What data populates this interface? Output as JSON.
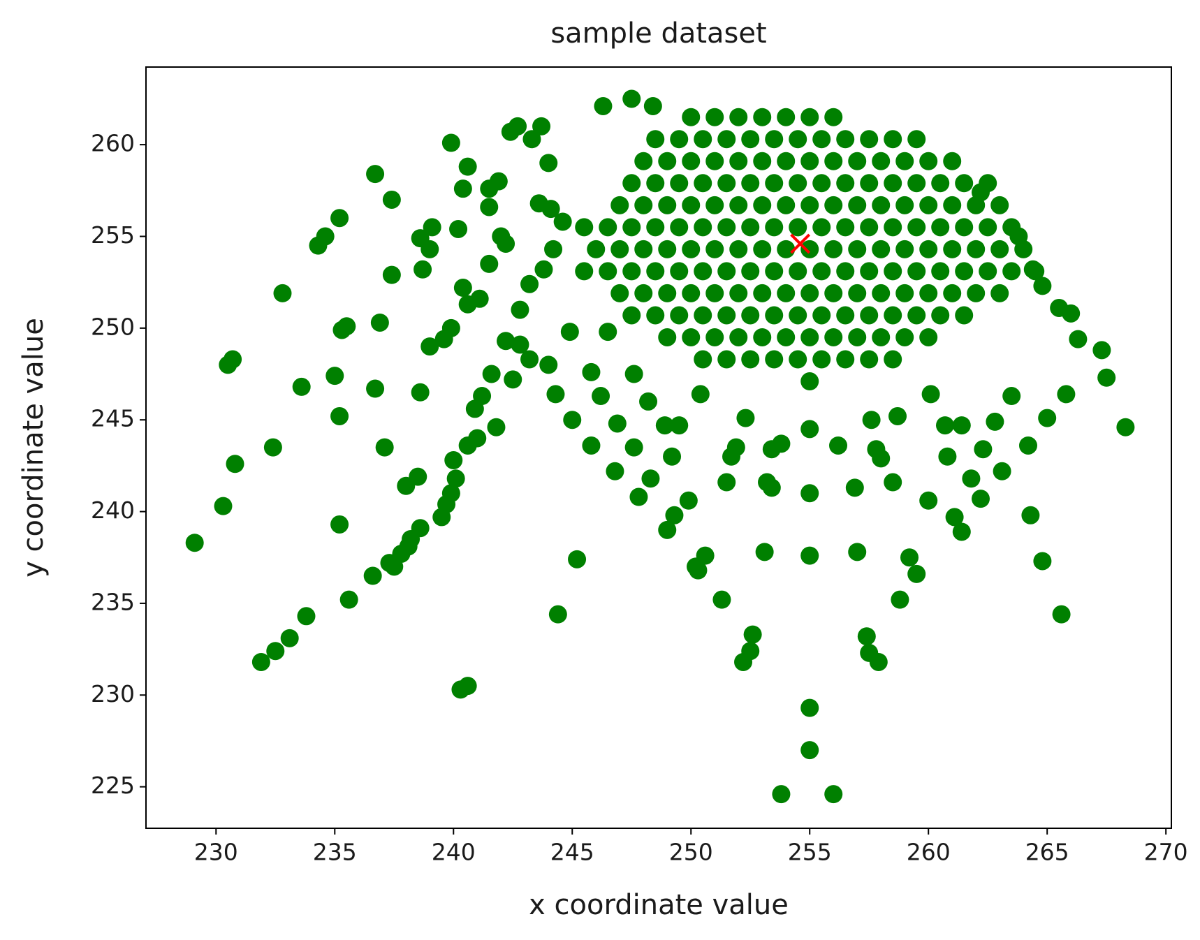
{
  "chart_data": {
    "type": "scatter",
    "title": "sample dataset",
    "x_label": "x coordinate value",
    "y_label": "y coordinate value",
    "xlim": [
      227.05,
      270.23
    ],
    "ylim": [
      222.74,
      264.23
    ],
    "xticks": [
      230,
      235,
      240,
      245,
      250,
      255,
      260,
      265,
      270
    ],
    "yticks": [
      225,
      230,
      235,
      240,
      245,
      250,
      255,
      260
    ],
    "grid": false,
    "series": [
      {
        "color": "#008000",
        "marker": "o",
        "x": [
          229.1,
          230.3,
          230.8,
          230.5,
          230.7,
          231.9,
          232.5,
          233.1,
          233.8,
          232.4,
          233.6,
          232.8,
          234.3,
          234.6,
          235.2,
          235,
          235.2,
          235.2,
          235.6,
          235.3,
          235.5,
          236.7,
          237.4,
          236.7,
          236.6,
          236.9,
          237.4,
          237.1,
          237.3,
          237.5,
          237.8,
          238.1,
          238.2,
          238.6,
          238,
          238.5,
          238.6,
          238.7,
          238.6,
          239,
          239.1,
          239,
          239.6,
          239.9,
          239.5,
          239.7,
          239.9,
          240.1,
          240,
          240.3,
          240.6,
          239.9,
          240.4,
          240.6,
          240.2,
          240.4,
          240.6,
          241.1,
          240.6,
          241,
          241.8,
          240.9,
          241.2,
          241.6,
          241.5,
          241.5,
          241.5,
          241.9,
          242,
          242.2,
          242.4,
          242.7,
          243.3,
          243.7,
          244,
          243.6,
          244.1,
          244.6,
          242.8,
          243.2,
          243.8,
          244.2,
          242.2,
          242.8,
          242.5,
          243.2,
          244,
          244.3,
          244.9,
          244.4,
          245,
          245.2,
          245.8,
          246.2,
          245.8,
          246.5,
          246.3,
          246.9,
          246.8,
          247.6,
          247.8,
          247.6,
          247.5,
          248.4,
          248.3,
          248.2,
          248.9,
          249,
          249.3,
          249.2,
          249.5,
          249.9,
          250.2,
          250.3,
          250.6,
          250.4,
          251.3,
          251.5,
          251.7,
          251.9,
          252.3,
          252.2,
          252.5,
          252.6,
          253.1,
          253.2,
          253.4,
          253.4,
          253.8,
          253.8,
          255,
          255,
          255,
          255,
          255,
          255,
          256,
          256.2,
          256.9,
          257,
          257.4,
          257.5,
          257.9,
          257.6,
          257.8,
          258,
          258.5,
          258.8,
          258.7,
          259.2,
          259.5,
          260,
          260.1,
          260.7,
          260.8,
          261.1,
          261.4,
          261.4,
          261.8,
          262.2,
          262.3,
          263.1,
          262.8,
          263.5,
          264.2,
          264.3,
          264.8,
          265.6,
          265,
          265.8,
          266.3,
          267.3,
          267.5,
          268.3,
          266,
          265.5,
          264.8,
          264.4,
          263.8,
          262.2
        ],
        "values": [
          238.3,
          240.3,
          242.6,
          248,
          248.3,
          231.8,
          232.4,
          233.1,
          234.3,
          243.5,
          246.8,
          251.9,
          254.5,
          255,
          256,
          247.4,
          245.2,
          239.3,
          235.2,
          249.9,
          250.1,
          258.4,
          257,
          246.7,
          236.5,
          250.3,
          252.9,
          243.5,
          237.2,
          237,
          237.7,
          238.1,
          238.5,
          239.1,
          241.4,
          241.9,
          246.5,
          253.2,
          254.9,
          254.3,
          255.5,
          249,
          249.4,
          250,
          239.7,
          240.4,
          241,
          241.8,
          242.8,
          230.3,
          230.5,
          260.1,
          257.6,
          258.8,
          255.4,
          252.2,
          251.3,
          251.6,
          243.6,
          244,
          244.6,
          245.6,
          246.3,
          247.5,
          253.5,
          256.6,
          257.6,
          258,
          255,
          254.6,
          260.7,
          261,
          260.3,
          261,
          259,
          256.8,
          256.5,
          255.8,
          251,
          252.4,
          253.2,
          254.3,
          249.3,
          249.1,
          247.2,
          248.3,
          248,
          246.4,
          249.8,
          234.4,
          245,
          237.4,
          243.6,
          246.3,
          247.6,
          249.8,
          262.1,
          244.8,
          242.2,
          243.5,
          240.8,
          247.5,
          262.5,
          262.1,
          241.8,
          246,
          244.7,
          239,
          239.8,
          243,
          244.7,
          240.6,
          237,
          236.8,
          237.6,
          246.4,
          235.2,
          241.6,
          243,
          243.5,
          245.1,
          231.8,
          232.4,
          233.3,
          237.8,
          241.6,
          241.3,
          243.4,
          243.7,
          224.6,
          229.3,
          227,
          237.6,
          241,
          244.5,
          247.1,
          224.6,
          243.6,
          241.3,
          237.8,
          233.2,
          232.3,
          231.8,
          245,
          243.4,
          242.9,
          241.6,
          235.2,
          245.2,
          237.5,
          236.6,
          240.6,
          246.4,
          244.7,
          243,
          239.7,
          238.9,
          244.7,
          241.8,
          240.7,
          243.4,
          242.2,
          244.9,
          246.3,
          243.6,
          239.8,
          237.3,
          234.4,
          245.1,
          246.4,
          249.4,
          248.8,
          247.3,
          244.6,
          250.8,
          251.1,
          252.3,
          253.2,
          255,
          257.4
        ]
      },
      {
        "color": "#008000",
        "marker": "o",
        "x": [
          250,
          251,
          252,
          253,
          254,
          255,
          256,
          248.5,
          249.5,
          250.5,
          251.5,
          252.5,
          253.5,
          254.5,
          255.5,
          256.5,
          257.5,
          258.5,
          259.5,
          248,
          249,
          250,
          251,
          252,
          253,
          254,
          255,
          256,
          257,
          258,
          259,
          260,
          261,
          247.5,
          248.5,
          249.5,
          250.5,
          251.5,
          252.5,
          253.5,
          254.5,
          255.5,
          256.5,
          257.5,
          258.5,
          259.5,
          260.5,
          261.5,
          262.5,
          247,
          248,
          249,
          250,
          251,
          252,
          253,
          254,
          255,
          256,
          257,
          258,
          259,
          260,
          261,
          262,
          263,
          245.5,
          246.5,
          247.5,
          248.5,
          249.5,
          250.5,
          251.5,
          252.5,
          253.5,
          254.5,
          255.5,
          256.5,
          257.5,
          258.5,
          259.5,
          260.5,
          261.5,
          262.5,
          263.5,
          246,
          247,
          248,
          249,
          250,
          251,
          252,
          253,
          254,
          255,
          256,
          257,
          258,
          259,
          260,
          261,
          262,
          263,
          264,
          245.5,
          246.5,
          247.5,
          248.5,
          249.5,
          250.5,
          251.5,
          252.5,
          253.5,
          254.5,
          255.5,
          256.5,
          257.5,
          258.5,
          259.5,
          260.5,
          261.5,
          262.5,
          263.5,
          264.5,
          247,
          248,
          249,
          250,
          251,
          252,
          253,
          254,
          255,
          256,
          257,
          258,
          259,
          260,
          261,
          262,
          263,
          247.5,
          248.5,
          249.5,
          250.5,
          251.5,
          252.5,
          253.5,
          254.5,
          255.5,
          256.5,
          257.5,
          258.5,
          259.5,
          260.5,
          261.5,
          249,
          250,
          251,
          252,
          253,
          254,
          255,
          256,
          257,
          258,
          259,
          260,
          250.5,
          251.5,
          252.5,
          253.5,
          254.5,
          255.5,
          256.5,
          257.5,
          258.5
        ],
        "values": [
          261.5,
          261.5,
          261.5,
          261.5,
          261.5,
          261.5,
          261.5,
          260.3,
          260.3,
          260.3,
          260.3,
          260.3,
          260.3,
          260.3,
          260.3,
          260.3,
          260.3,
          260.3,
          260.3,
          259.1,
          259.1,
          259.1,
          259.1,
          259.1,
          259.1,
          259.1,
          259.1,
          259.1,
          259.1,
          259.1,
          259.1,
          259.1,
          259.1,
          257.9,
          257.9,
          257.9,
          257.9,
          257.9,
          257.9,
          257.9,
          257.9,
          257.9,
          257.9,
          257.9,
          257.9,
          257.9,
          257.9,
          257.9,
          257.9,
          256.7,
          256.7,
          256.7,
          256.7,
          256.7,
          256.7,
          256.7,
          256.7,
          256.7,
          256.7,
          256.7,
          256.7,
          256.7,
          256.7,
          256.7,
          256.7,
          256.7,
          255.5,
          255.5,
          255.5,
          255.5,
          255.5,
          255.5,
          255.5,
          255.5,
          255.5,
          255.5,
          255.5,
          255.5,
          255.5,
          255.5,
          255.5,
          255.5,
          255.5,
          255.5,
          255.5,
          254.3,
          254.3,
          254.3,
          254.3,
          254.3,
          254.3,
          254.3,
          254.3,
          254.3,
          254.3,
          254.3,
          254.3,
          254.3,
          254.3,
          254.3,
          254.3,
          254.3,
          254.3,
          254.3,
          253.1,
          253.1,
          253.1,
          253.1,
          253.1,
          253.1,
          253.1,
          253.1,
          253.1,
          253.1,
          253.1,
          253.1,
          253.1,
          253.1,
          253.1,
          253.1,
          253.1,
          253.1,
          253.1,
          253.1,
          251.9,
          251.9,
          251.9,
          251.9,
          251.9,
          251.9,
          251.9,
          251.9,
          251.9,
          251.9,
          251.9,
          251.9,
          251.9,
          251.9,
          251.9,
          251.9,
          251.9,
          250.7,
          250.7,
          250.7,
          250.7,
          250.7,
          250.7,
          250.7,
          250.7,
          250.7,
          250.7,
          250.7,
          250.7,
          250.7,
          250.7,
          250.7,
          249.5,
          249.5,
          249.5,
          249.5,
          249.5,
          249.5,
          249.5,
          249.5,
          249.5,
          249.5,
          249.5,
          249.5,
          248.3,
          248.3,
          248.3,
          248.3,
          248.3,
          248.3,
          248.3,
          248.3,
          248.3
        ]
      },
      {
        "color": "#ff0000",
        "marker": "x",
        "x": [
          254.6
        ],
        "values": [
          254.6
        ]
      }
    ]
  }
}
